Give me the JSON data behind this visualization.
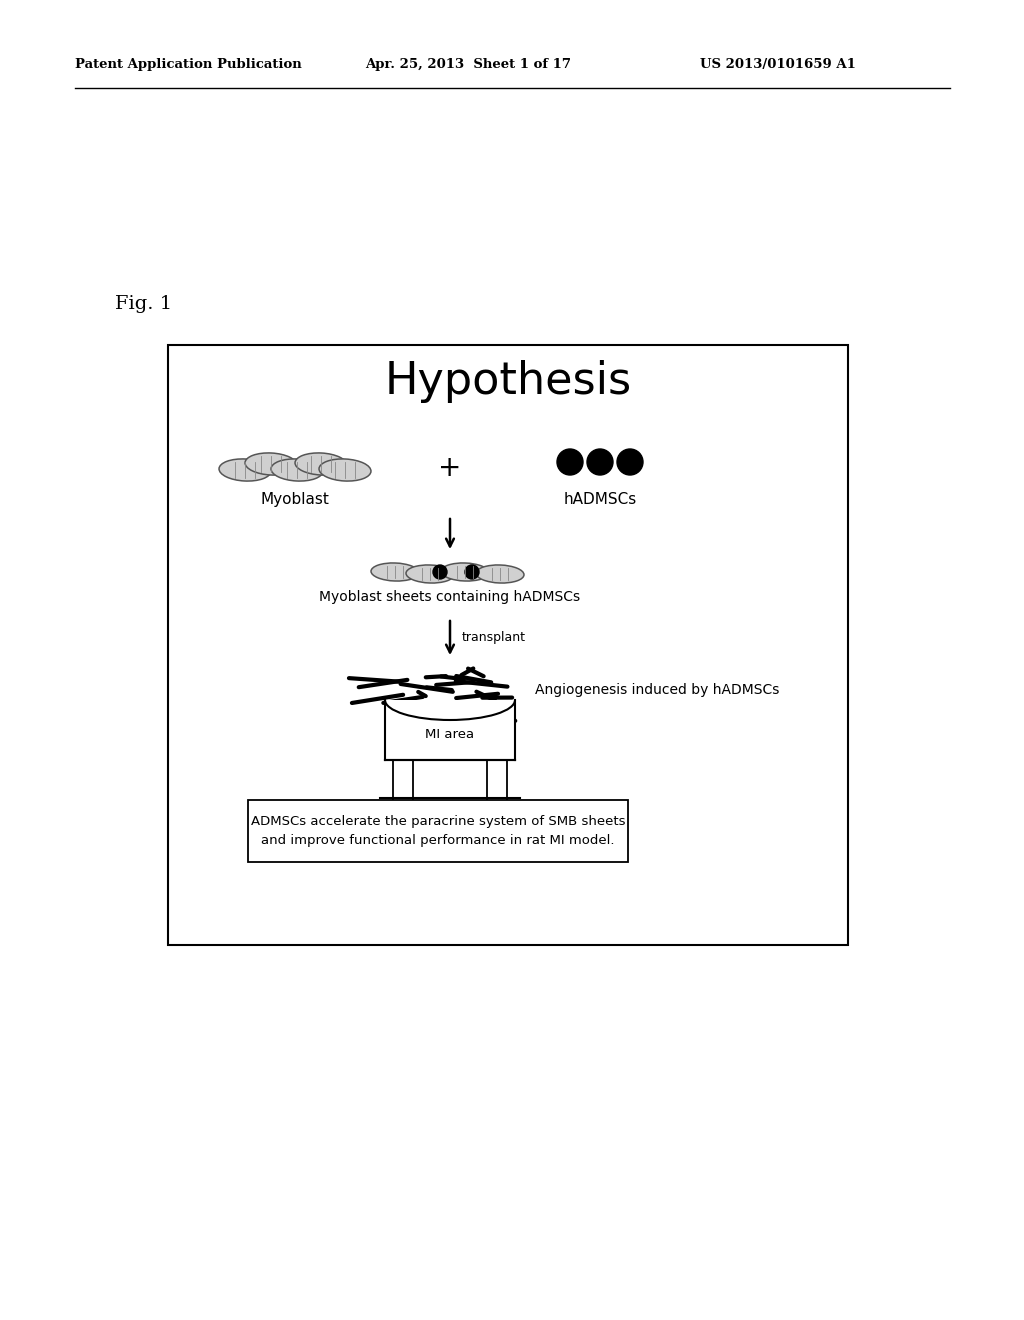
{
  "header_left": "Patent Application Publication",
  "header_mid": "Apr. 25, 2013  Sheet 1 of 17",
  "header_right": "US 2013/0101659 A1",
  "fig_label": "Fig. 1",
  "title": "Hypothesis",
  "label_myoblast": "Myoblast",
  "label_plus": "+",
  "label_hadmscs": "hADMSCs",
  "label_sheet": "Myoblast sheets containing hADMSCs",
  "label_transplant": "transplant",
  "label_angio": "Angiogenesis induced by hADMSCs",
  "label_mi": "MI area",
  "label_box": "ADMSCs accelerate the paracrine system of SMB sheets\nand improve functional performance in rat MI model.",
  "bg_color": "#ffffff",
  "text_color": "#000000"
}
